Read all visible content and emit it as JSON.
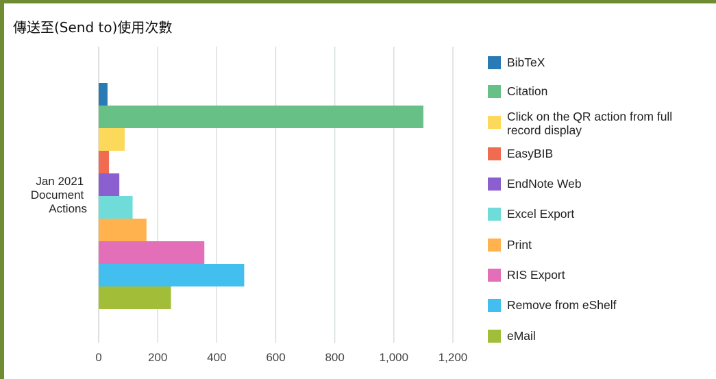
{
  "chart_data": {
    "type": "bar",
    "orientation": "horizontal",
    "title": "傳送至(Send to)使用次數",
    "category_label": [
      "Jan 2021",
      "Document",
      "Actions"
    ],
    "xlim": [
      0,
      1200
    ],
    "x_ticks": [
      "0",
      "200",
      "400",
      "600",
      "800",
      "1,000",
      "1,200"
    ],
    "x_tick_values": [
      0,
      200,
      400,
      600,
      800,
      1000,
      1200
    ],
    "grid": true,
    "legend_position": "right",
    "series": [
      {
        "name": "BibTeX",
        "label_lines": [
          "BibTeX"
        ],
        "value": 30,
        "color": "#2a7ab5"
      },
      {
        "name": "Citation",
        "label_lines": [
          "Citation"
        ],
        "value": 1100,
        "color": "#67c187"
      },
      {
        "name": "Click on the QR action from full record display",
        "label_lines": [
          "Click on the QR action from full",
          "record display"
        ],
        "value": 88,
        "color": "#fcd95a"
      },
      {
        "name": "EasyBIB",
        "label_lines": [
          "EasyBIB"
        ],
        "value": 35,
        "color": "#f06b4f"
      },
      {
        "name": "EndNote Web",
        "label_lines": [
          "EndNote Web"
        ],
        "value": 70,
        "color": "#8b5fcf"
      },
      {
        "name": "Excel Export",
        "label_lines": [
          "Excel Export"
        ],
        "value": 115,
        "color": "#6fdcda"
      },
      {
        "name": "Print",
        "label_lines": [
          "Print"
        ],
        "value": 162,
        "color": "#ffb24d"
      },
      {
        "name": "RIS Export",
        "label_lines": [
          "RIS Export"
        ],
        "value": 358,
        "color": "#e26fb7"
      },
      {
        "name": "Remove from eShelf",
        "label_lines": [
          "Remove from eShelf"
        ],
        "value": 493,
        "color": "#42bfef"
      },
      {
        "name": "eMail",
        "label_lines": [
          "eMail"
        ],
        "value": 245,
        "color": "#a2be39"
      }
    ]
  }
}
